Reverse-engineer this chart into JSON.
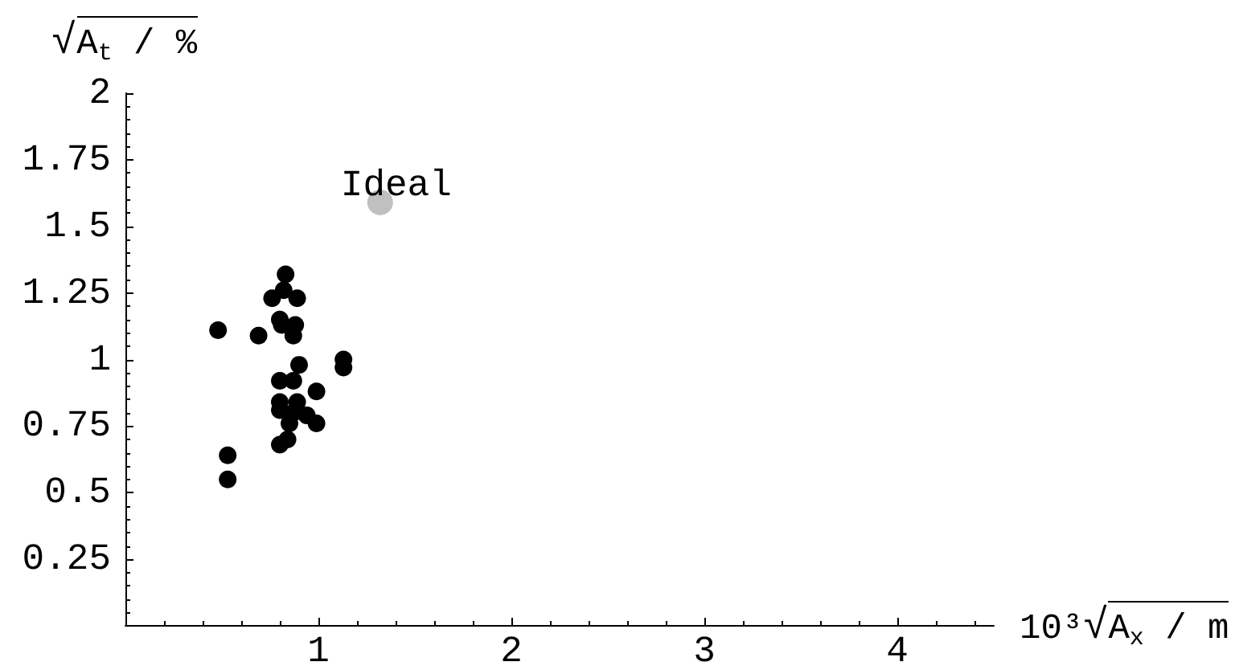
{
  "chart_data": {
    "type": "scatter",
    "xlabel": "10³√A$_{x}$ / m",
    "ylabel": "√A$_{t}$ / %",
    "xlim": [
      0,
      4.5
    ],
    "xticks": [
      {
        "value": 0.2,
        "label": null
      },
      {
        "value": 0.4,
        "label": null
      },
      {
        "value": 0.6,
        "label": null
      },
      {
        "value": 0.8,
        "label": null
      },
      1,
      {
        "value": 1.2,
        "label": null
      },
      {
        "value": 1.4,
        "label": null
      },
      {
        "value": 1.6,
        "label": null
      },
      {
        "value": 1.8,
        "label": null
      },
      2,
      {
        "value": 2.2,
        "label": null
      },
      {
        "value": 2.4,
        "label": null
      },
      {
        "value": 2.6,
        "label": null
      },
      {
        "value": 2.8,
        "label": null
      },
      3,
      {
        "value": 3.2,
        "label": null
      },
      {
        "value": 3.4,
        "label": null
      },
      {
        "value": 3.6,
        "label": null
      },
      {
        "value": 3.8,
        "label": null
      },
      4,
      {
        "value": 4.2,
        "label": null
      },
      {
        "value": 4.4,
        "label": null
      }
    ],
    "ylim": [
      0,
      2
    ],
    "yticks": [
      {
        "value": 0.05,
        "label": null
      },
      {
        "value": 0.1,
        "label": null
      },
      {
        "value": 0.15,
        "label": null
      },
      {
        "value": 0.2,
        "label": null
      },
      0.25,
      {
        "value": 0.3,
        "label": null
      },
      {
        "value": 0.35,
        "label": null
      },
      {
        "value": 0.4,
        "label": null
      },
      {
        "value": 0.45,
        "label": null
      },
      0.5,
      {
        "value": 0.55,
        "label": null
      },
      {
        "value": 0.6,
        "label": null
      },
      {
        "value": 0.65,
        "label": null
      },
      {
        "value": 0.7,
        "label": null
      },
      0.75,
      {
        "value": 0.8,
        "label": null
      },
      {
        "value": 0.85,
        "label": null
      },
      {
        "value": 0.9,
        "label": null
      },
      {
        "value": 0.95,
        "label": null
      },
      1,
      {
        "value": 1.05,
        "label": null
      },
      {
        "value": 1.1,
        "label": null
      },
      {
        "value": 1.15,
        "label": null
      },
      {
        "value": 1.2,
        "label": null
      },
      1.25,
      {
        "value": 1.3,
        "label": null
      },
      {
        "value": 1.35,
        "label": null
      },
      {
        "value": 1.4,
        "label": null
      },
      {
        "value": 1.45,
        "label": null
      },
      1.5,
      {
        "value": 1.55,
        "label": null
      },
      {
        "value": 1.6,
        "label": null
      },
      {
        "value": 1.65,
        "label": null
      },
      {
        "value": 1.7,
        "label": null
      },
      1.75,
      {
        "value": 1.8,
        "label": null
      },
      {
        "value": 1.85,
        "label": null
      },
      {
        "value": 1.9,
        "label": null
      },
      {
        "value": 1.95,
        "label": null
      },
      2
    ],
    "series": [
      {
        "color": "#000000",
        "x": [
          0.83,
          0.76,
          0.89,
          0.82,
          0.8,
          0.81,
          0.88,
          0.87,
          0.48,
          0.69,
          1.13,
          1.13,
          0.9,
          0.8,
          0.87,
          0.99,
          0.8,
          0.8,
          0.89,
          0.87,
          0.94,
          0.85,
          0.99,
          0.84,
          0.8,
          0.53,
          0.53
        ],
        "values": [
          1.32,
          1.23,
          1.23,
          1.26,
          1.15,
          1.13,
          1.13,
          1.09,
          1.11,
          1.09,
          1.0,
          0.97,
          0.98,
          0.92,
          0.92,
          0.88,
          0.84,
          0.81,
          0.84,
          0.8,
          0.79,
          0.76,
          0.76,
          0.7,
          0.68,
          0.64,
          0.55
        ]
      },
      {
        "name": "Ideal",
        "color": "#c0c0c0",
        "x": [
          1.32
        ],
        "values": [
          1.59
        ]
      }
    ],
    "marker": "circle",
    "grid": false,
    "legend": false
  }
}
